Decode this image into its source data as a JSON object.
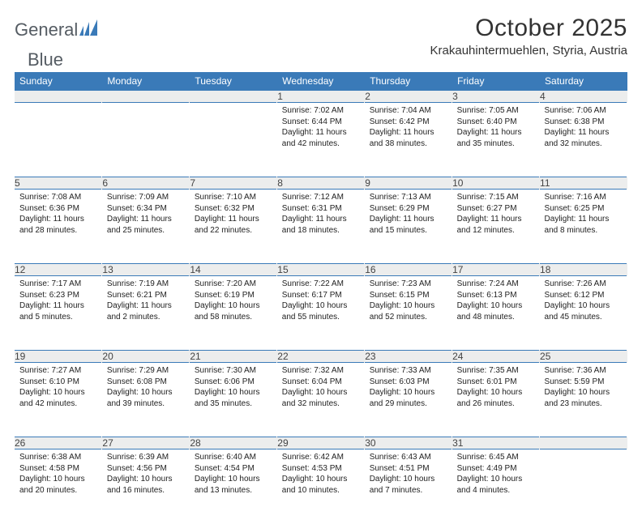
{
  "brand": {
    "word1": "General",
    "word2": "Blue"
  },
  "title": "October 2025",
  "location": "Krakauhintermuehlen, Styria, Austria",
  "colors": {
    "header_bg": "#3a7ab8",
    "header_text": "#ffffff",
    "daynum_bg": "#eceded",
    "rule": "#2e6da4",
    "text": "#222222",
    "brand_gray": "#555c63",
    "brand_blue": "#3a7ab8",
    "page_bg": "#ffffff"
  },
  "typography": {
    "title_fontsize": 30,
    "location_fontsize": 15,
    "weekday_fontsize": 12,
    "daynum_fontsize": 12,
    "cell_fontsize": 10,
    "font_family": "Arial"
  },
  "weekdays": [
    "Sunday",
    "Monday",
    "Tuesday",
    "Wednesday",
    "Thursday",
    "Friday",
    "Saturday"
  ],
  "weeks": [
    [
      null,
      null,
      null,
      {
        "n": "1",
        "sunrise": "7:02 AM",
        "sunset": "6:44 PM",
        "dl_h": "11",
        "dl_m": "42"
      },
      {
        "n": "2",
        "sunrise": "7:04 AM",
        "sunset": "6:42 PM",
        "dl_h": "11",
        "dl_m": "38"
      },
      {
        "n": "3",
        "sunrise": "7:05 AM",
        "sunset": "6:40 PM",
        "dl_h": "11",
        "dl_m": "35"
      },
      {
        "n": "4",
        "sunrise": "7:06 AM",
        "sunset": "6:38 PM",
        "dl_h": "11",
        "dl_m": "32"
      }
    ],
    [
      {
        "n": "5",
        "sunrise": "7:08 AM",
        "sunset": "6:36 PM",
        "dl_h": "11",
        "dl_m": "28"
      },
      {
        "n": "6",
        "sunrise": "7:09 AM",
        "sunset": "6:34 PM",
        "dl_h": "11",
        "dl_m": "25"
      },
      {
        "n": "7",
        "sunrise": "7:10 AM",
        "sunset": "6:32 PM",
        "dl_h": "11",
        "dl_m": "22"
      },
      {
        "n": "8",
        "sunrise": "7:12 AM",
        "sunset": "6:31 PM",
        "dl_h": "11",
        "dl_m": "18"
      },
      {
        "n": "9",
        "sunrise": "7:13 AM",
        "sunset": "6:29 PM",
        "dl_h": "11",
        "dl_m": "15"
      },
      {
        "n": "10",
        "sunrise": "7:15 AM",
        "sunset": "6:27 PM",
        "dl_h": "11",
        "dl_m": "12"
      },
      {
        "n": "11",
        "sunrise": "7:16 AM",
        "sunset": "6:25 PM",
        "dl_h": "11",
        "dl_m": "8"
      }
    ],
    [
      {
        "n": "12",
        "sunrise": "7:17 AM",
        "sunset": "6:23 PM",
        "dl_h": "11",
        "dl_m": "5"
      },
      {
        "n": "13",
        "sunrise": "7:19 AM",
        "sunset": "6:21 PM",
        "dl_h": "11",
        "dl_m": "2"
      },
      {
        "n": "14",
        "sunrise": "7:20 AM",
        "sunset": "6:19 PM",
        "dl_h": "10",
        "dl_m": "58"
      },
      {
        "n": "15",
        "sunrise": "7:22 AM",
        "sunset": "6:17 PM",
        "dl_h": "10",
        "dl_m": "55"
      },
      {
        "n": "16",
        "sunrise": "7:23 AM",
        "sunset": "6:15 PM",
        "dl_h": "10",
        "dl_m": "52"
      },
      {
        "n": "17",
        "sunrise": "7:24 AM",
        "sunset": "6:13 PM",
        "dl_h": "10",
        "dl_m": "48"
      },
      {
        "n": "18",
        "sunrise": "7:26 AM",
        "sunset": "6:12 PM",
        "dl_h": "10",
        "dl_m": "45"
      }
    ],
    [
      {
        "n": "19",
        "sunrise": "7:27 AM",
        "sunset": "6:10 PM",
        "dl_h": "10",
        "dl_m": "42"
      },
      {
        "n": "20",
        "sunrise": "7:29 AM",
        "sunset": "6:08 PM",
        "dl_h": "10",
        "dl_m": "39"
      },
      {
        "n": "21",
        "sunrise": "7:30 AM",
        "sunset": "6:06 PM",
        "dl_h": "10",
        "dl_m": "35"
      },
      {
        "n": "22",
        "sunrise": "7:32 AM",
        "sunset": "6:04 PM",
        "dl_h": "10",
        "dl_m": "32"
      },
      {
        "n": "23",
        "sunrise": "7:33 AM",
        "sunset": "6:03 PM",
        "dl_h": "10",
        "dl_m": "29"
      },
      {
        "n": "24",
        "sunrise": "7:35 AM",
        "sunset": "6:01 PM",
        "dl_h": "10",
        "dl_m": "26"
      },
      {
        "n": "25",
        "sunrise": "7:36 AM",
        "sunset": "5:59 PM",
        "dl_h": "10",
        "dl_m": "23"
      }
    ],
    [
      {
        "n": "26",
        "sunrise": "6:38 AM",
        "sunset": "4:58 PM",
        "dl_h": "10",
        "dl_m": "20"
      },
      {
        "n": "27",
        "sunrise": "6:39 AM",
        "sunset": "4:56 PM",
        "dl_h": "10",
        "dl_m": "16"
      },
      {
        "n": "28",
        "sunrise": "6:40 AM",
        "sunset": "4:54 PM",
        "dl_h": "10",
        "dl_m": "13"
      },
      {
        "n": "29",
        "sunrise": "6:42 AM",
        "sunset": "4:53 PM",
        "dl_h": "10",
        "dl_m": "10"
      },
      {
        "n": "30",
        "sunrise": "6:43 AM",
        "sunset": "4:51 PM",
        "dl_h": "10",
        "dl_m": "7"
      },
      {
        "n": "31",
        "sunrise": "6:45 AM",
        "sunset": "4:49 PM",
        "dl_h": "10",
        "dl_m": "4"
      },
      null
    ]
  ],
  "labels": {
    "sunrise": "Sunrise:",
    "sunset": "Sunset:",
    "daylight": "Daylight:",
    "hours": "hours",
    "and": "and",
    "minutes": "minutes."
  }
}
